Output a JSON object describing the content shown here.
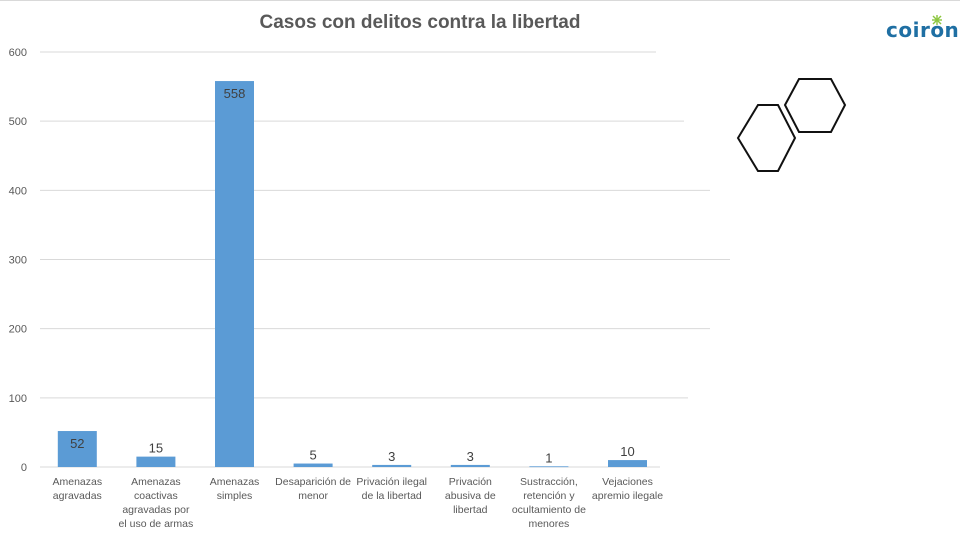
{
  "chart_data": {
    "type": "bar",
    "title": "Casos con delitos contra la libertad",
    "categories": [
      "Amenazas agravadas",
      "Amenazas coactivas agravadas por el uso de armas",
      "Amenazas simples",
      "Desaparición de menor",
      "Privación ilegal de la libertad",
      "Privación abusiva de libertad",
      "Sustracción, retención y ocultamiento de menores",
      "Vejaciones apremio ilegale"
    ],
    "values": [
      52,
      15,
      558,
      5,
      3,
      3,
      1,
      10
    ],
    "data_labels": [
      "52",
      "15",
      "558",
      "5",
      "3",
      "3",
      "1",
      "10"
    ],
    "ylim": [
      0,
      600
    ],
    "yticks": [
      "0",
      "100",
      "200",
      "300",
      "400",
      "500",
      "600"
    ],
    "grid": true,
    "bar_color": "#5b9bd5"
  },
  "logo": {
    "text": "coiron",
    "color": "#1f6fa3"
  }
}
